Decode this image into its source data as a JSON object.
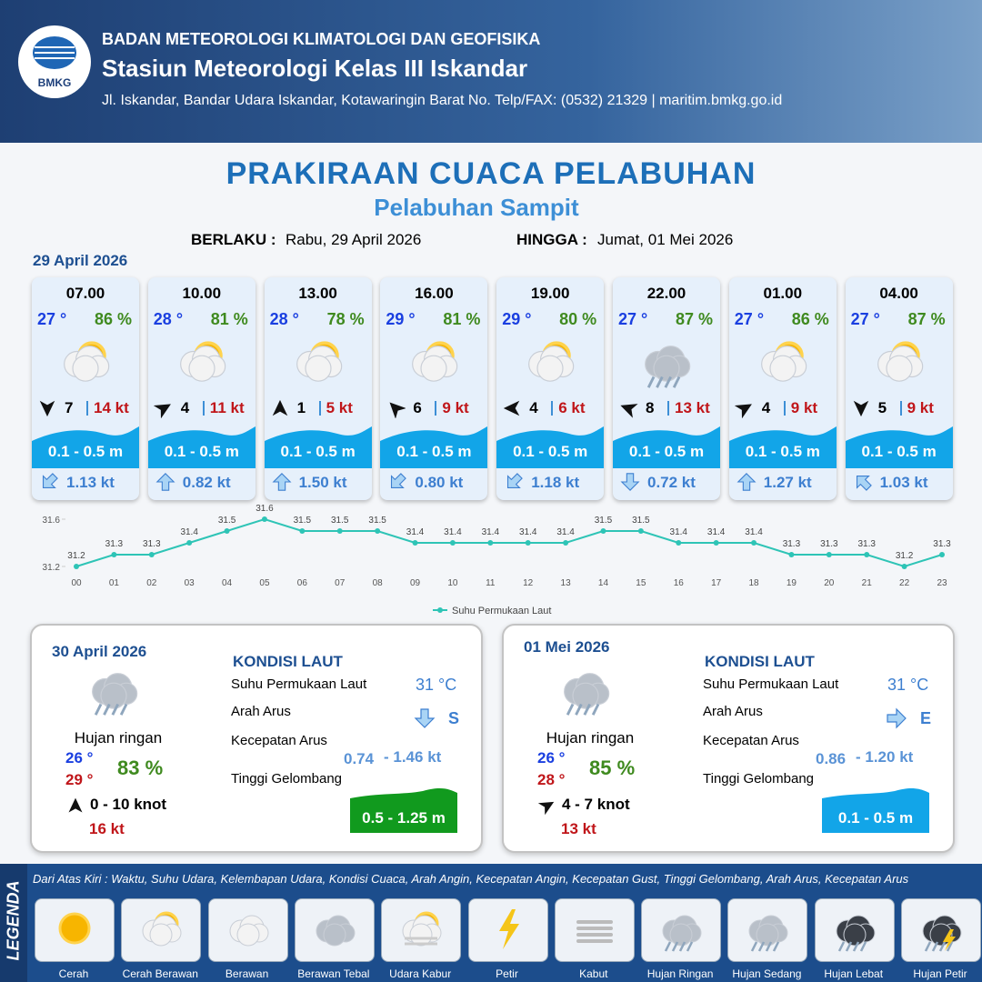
{
  "header": {
    "logo": "BMKG",
    "agency": "BADAN METEOROLOGI KLIMATOLOGI DAN GEOFISIKA",
    "station": "Stasiun Meteorologi Kelas III Iskandar",
    "address": "Jl. Iskandar, Bandar Udara Iskandar, Kotawaringin Barat No. Telp/FAX: (0532) 21329 | maritim.bmkg.go.id"
  },
  "title": "PRAKIRAAN CUACA PELABUHAN",
  "subtitle": "Pelabuhan Sampit",
  "validity": {
    "from_label": "BERLAKU :",
    "from": "Rabu, 29 April 2026",
    "to_label": "HINGGA :",
    "to": "Jumat, 01 Mei 2026"
  },
  "day1": {
    "date": "29 April 2026",
    "wave_color": "#12a5e8",
    "slots": [
      {
        "time": "07.00",
        "temp": "27 °",
        "humidity": "86 %",
        "weather": "Cerah Berawan",
        "wind_arrow_deg": 180,
        "wind": "7",
        "gust": "14 kt",
        "wave": "0.1 - 0.5 m",
        "current_arrow_deg": 225,
        "current": "1.13 kt"
      },
      {
        "time": "10.00",
        "temp": "28 °",
        "humidity": "81 %",
        "weather": "Cerah Berawan",
        "wind_arrow_deg": 60,
        "wind": "4",
        "gust": "11 kt",
        "wave": "0.1 - 0.5 m",
        "current_arrow_deg": 0,
        "current": "0.82 kt"
      },
      {
        "time": "13.00",
        "temp": "28 °",
        "humidity": "78 %",
        "weather": "Cerah Berawan",
        "wind_arrow_deg": 0,
        "wind": "1",
        "gust": "5 kt",
        "wave": "0.1 - 0.5 m",
        "current_arrow_deg": 0,
        "current": "1.50 kt"
      },
      {
        "time": "16.00",
        "temp": "29 °",
        "humidity": "81 %",
        "weather": "Cerah Berawan",
        "wind_arrow_deg": 315,
        "wind": "6",
        "gust": "9 kt",
        "wave": "0.1 - 0.5 m",
        "current_arrow_deg": 225,
        "current": "0.80 kt"
      },
      {
        "time": "19.00",
        "temp": "29 °",
        "humidity": "80 %",
        "weather": "Cerah Berawan",
        "wind_arrow_deg": 270,
        "wind": "4",
        "gust": "6 kt",
        "wave": "0.1 - 0.5 m",
        "current_arrow_deg": 225,
        "current": "1.18 kt"
      },
      {
        "time": "22.00",
        "temp": "27 °",
        "humidity": "87 %",
        "weather": "Hujan Ringan",
        "wind_arrow_deg": 290,
        "wind": "8",
        "gust": "13 kt",
        "wave": "0.1 - 0.5 m",
        "current_arrow_deg": 180,
        "current": "0.72 kt"
      },
      {
        "time": "01.00",
        "temp": "27 °",
        "humidity": "86 %",
        "weather": "Cerah Berawan",
        "wind_arrow_deg": 60,
        "wind": "4",
        "gust": "9 kt",
        "wave": "0.1 - 0.5 m",
        "current_arrow_deg": 0,
        "current": "1.27 kt"
      },
      {
        "time": "04.00",
        "temp": "27 °",
        "humidity": "87 %",
        "weather": "Cerah Berawan",
        "wind_arrow_deg": 180,
        "wind": "5",
        "gust": "9 kt",
        "wave": "0.1 - 0.5 m",
        "current_arrow_deg": 315,
        "current": "1.03 kt"
      }
    ]
  },
  "chart_data": {
    "type": "line",
    "categories": [
      "00",
      "01",
      "02",
      "03",
      "04",
      "05",
      "06",
      "07",
      "08",
      "09",
      "10",
      "11",
      "12",
      "13",
      "14",
      "15",
      "16",
      "17",
      "18",
      "19",
      "20",
      "21",
      "22",
      "23"
    ],
    "series": [
      {
        "name": "Suhu Permukaan Laut",
        "color": "#2ec4b6",
        "values": [
          31.2,
          31.3,
          31.3,
          31.4,
          31.5,
          31.6,
          31.5,
          31.5,
          31.5,
          31.4,
          31.4,
          31.4,
          31.4,
          31.4,
          31.5,
          31.5,
          31.4,
          31.4,
          31.4,
          31.3,
          31.3,
          31.3,
          31.2,
          31.3
        ]
      }
    ],
    "ylim": [
      31.2,
      31.6
    ],
    "yticks": [
      31.2,
      31.6
    ]
  },
  "days": [
    {
      "date": "30 April 2026",
      "weather": "Hujan ringan",
      "temp_min": "26 °",
      "temp_max": "29 °",
      "humidity": "83 %",
      "wind_arrow_deg": 0,
      "wind": "0  - 10 knot",
      "gust": "16 kt",
      "sea_title": "KONDISI LAUT",
      "labels": [
        "Suhu Permukaan Laut",
        "Arah Arus",
        "Kecepatan Arus",
        "Tinggi Gelombang"
      ],
      "sst": "31 °C",
      "current_arrow_deg": 180,
      "current_dir": "S",
      "current_from": "0.74",
      "current_to": "- 1.46 kt",
      "wave": "0.5 - 1.25 m",
      "wave_color": "#119a1e"
    },
    {
      "date": "01 Mei 2026",
      "weather": "Hujan ringan",
      "temp_min": "26 °",
      "temp_max": "28 °",
      "humidity": "85 %",
      "wind_arrow_deg": 60,
      "wind": "4  - 7 knot",
      "gust": "13 kt",
      "sea_title": "KONDISI LAUT",
      "labels": [
        "Suhu Permukaan Laut",
        "Arah Arus",
        "Kecepatan Arus",
        "Tinggi Gelombang"
      ],
      "sst": "31 °C",
      "current_arrow_deg": 90,
      "current_dir": "E",
      "current_from": "0.86",
      "current_to": "- 1.20 kt",
      "wave": "0.1 - 0.5 m",
      "wave_color": "#12a5e8"
    }
  ],
  "legend": {
    "label": "LEGENDA",
    "description": "Dari Atas Kiri : Waktu, Suhu Udara, Kelembapan Udara, Kondisi Cuaca, Arah Angin, Kecepatan Angin, Kecepatan Gust, Tinggi Gelombang, Arah Arus, Kecepatan Arus",
    "items": [
      "Cerah",
      "Cerah Berawan",
      "Berawan",
      "Berawan Tebal",
      "Udara Kabur",
      "Petir",
      "Kabut",
      "Hujan Ringan",
      "Hujan Sedang",
      "Hujan Lebat",
      "Hujan Petir"
    ]
  }
}
